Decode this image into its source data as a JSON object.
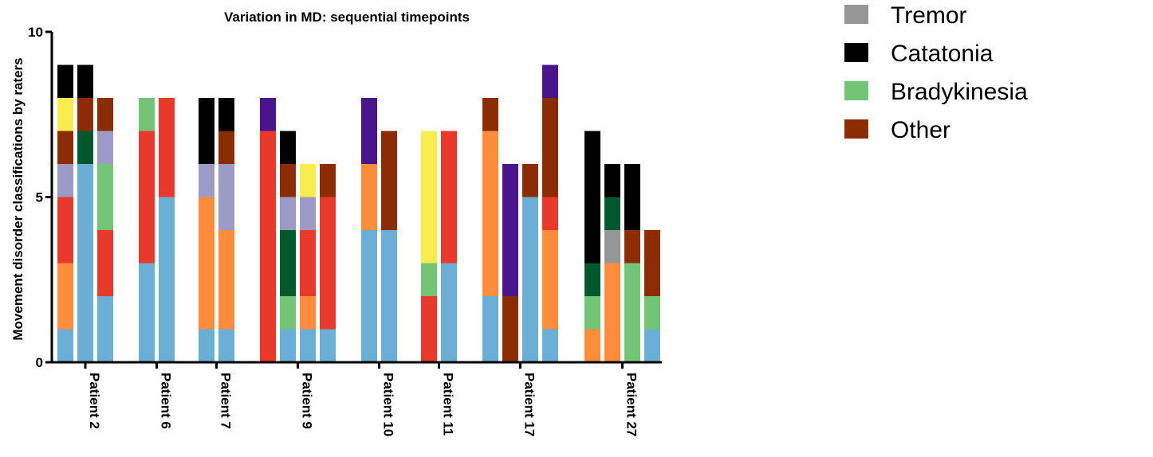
{
  "chart_data": {
    "type": "bar",
    "stacked": true,
    "title": "Variation in MD: sequential timepoints",
    "ylabel": "Movement disorder classifications by raters",
    "xlabel": "",
    "ylim": [
      0,
      10
    ],
    "yticks": [
      0,
      5,
      10
    ],
    "grid": false,
    "legend_placement": "right",
    "categories": [
      "Patient 2",
      "Patient 6",
      "Patient 7",
      "Patient 9",
      "Patient 10",
      "Patient 11",
      "Patient 17",
      "Patient 27"
    ],
    "colors": {
      "light_blue": "#6baed6",
      "orange": "#fd8d3c",
      "red": "#e8392c",
      "lavender": "#9e9ac8",
      "brown": "#8b2c05",
      "yellow": "#f9ec4f",
      "dark_green": "#00582e",
      "light_green": "#74c476",
      "black": "#000000",
      "purple": "#4a148c",
      "gray": "#969696"
    },
    "legend": [
      {
        "label": "Tremor",
        "color": "#969696"
      },
      {
        "label": "Catatonia",
        "color": "#000000"
      },
      {
        "label": "Bradykinesia",
        "color": "#74c476"
      },
      {
        "label": "Other",
        "color": "#8b2c05"
      }
    ],
    "bars": [
      {
        "category": "Patient 2",
        "segments": [
          {
            "c": "light_blue",
            "v": 1
          },
          {
            "c": "orange",
            "v": 2
          },
          {
            "c": "red",
            "v": 2
          },
          {
            "c": "lavender",
            "v": 1
          },
          {
            "c": "brown",
            "v": 1
          },
          {
            "c": "yellow",
            "v": 1
          },
          {
            "c": "black",
            "v": 1
          }
        ]
      },
      {
        "category": "Patient 2",
        "segments": [
          {
            "c": "light_blue",
            "v": 6
          },
          {
            "c": "dark_green",
            "v": 1
          },
          {
            "c": "brown",
            "v": 1
          },
          {
            "c": "black",
            "v": 1
          }
        ]
      },
      {
        "category": "Patient 2",
        "segments": [
          {
            "c": "light_blue",
            "v": 2
          },
          {
            "c": "red",
            "v": 2
          },
          {
            "c": "light_green",
            "v": 2
          },
          {
            "c": "lavender",
            "v": 1
          },
          {
            "c": "brown",
            "v": 1
          }
        ]
      },
      {
        "category": "Patient 6",
        "segments": [
          {
            "c": "light_blue",
            "v": 3
          },
          {
            "c": "red",
            "v": 4
          },
          {
            "c": "light_green",
            "v": 1
          }
        ]
      },
      {
        "category": "Patient 6",
        "segments": [
          {
            "c": "light_blue",
            "v": 5
          },
          {
            "c": "red",
            "v": 3
          }
        ]
      },
      {
        "category": "Patient 7",
        "segments": [
          {
            "c": "light_blue",
            "v": 1
          },
          {
            "c": "orange",
            "v": 4
          },
          {
            "c": "lavender",
            "v": 1
          },
          {
            "c": "black",
            "v": 2
          }
        ]
      },
      {
        "category": "Patient 7",
        "segments": [
          {
            "c": "light_blue",
            "v": 1
          },
          {
            "c": "orange",
            "v": 3
          },
          {
            "c": "lavender",
            "v": 2
          },
          {
            "c": "brown",
            "v": 1
          },
          {
            "c": "black",
            "v": 1
          }
        ]
      },
      {
        "category": "Patient 9",
        "segments": [
          {
            "c": "red",
            "v": 7
          },
          {
            "c": "purple",
            "v": 1
          }
        ]
      },
      {
        "category": "Patient 9",
        "segments": [
          {
            "c": "light_blue",
            "v": 1
          },
          {
            "c": "light_green",
            "v": 1
          },
          {
            "c": "dark_green",
            "v": 2
          },
          {
            "c": "lavender",
            "v": 1
          },
          {
            "c": "brown",
            "v": 1
          },
          {
            "c": "black",
            "v": 1
          }
        ]
      },
      {
        "category": "Patient 9",
        "segments": [
          {
            "c": "light_blue",
            "v": 1
          },
          {
            "c": "orange",
            "v": 1
          },
          {
            "c": "red",
            "v": 2
          },
          {
            "c": "lavender",
            "v": 1
          },
          {
            "c": "yellow",
            "v": 1
          }
        ]
      },
      {
        "category": "Patient 9",
        "segments": [
          {
            "c": "light_blue",
            "v": 1
          },
          {
            "c": "red",
            "v": 4
          },
          {
            "c": "brown",
            "v": 1
          }
        ]
      },
      {
        "category": "Patient 10",
        "segments": [
          {
            "c": "light_blue",
            "v": 4
          },
          {
            "c": "orange",
            "v": 2
          },
          {
            "c": "purple",
            "v": 2
          }
        ]
      },
      {
        "category": "Patient 10",
        "segments": [
          {
            "c": "light_blue",
            "v": 4
          },
          {
            "c": "brown",
            "v": 3
          }
        ]
      },
      {
        "category": "Patient 11",
        "segments": [
          {
            "c": "red",
            "v": 2
          },
          {
            "c": "light_green",
            "v": 1
          },
          {
            "c": "yellow",
            "v": 4
          }
        ]
      },
      {
        "category": "Patient 11",
        "segments": [
          {
            "c": "light_blue",
            "v": 3
          },
          {
            "c": "red",
            "v": 4
          }
        ]
      },
      {
        "category": "Patient 17",
        "segments": [
          {
            "c": "light_blue",
            "v": 2
          },
          {
            "c": "orange",
            "v": 5
          },
          {
            "c": "brown",
            "v": 1
          }
        ]
      },
      {
        "category": "Patient 17",
        "segments": [
          {
            "c": "brown",
            "v": 2
          },
          {
            "c": "purple",
            "v": 4
          }
        ]
      },
      {
        "category": "Patient 17",
        "segments": [
          {
            "c": "light_blue",
            "v": 5
          },
          {
            "c": "brown",
            "v": 1
          }
        ]
      },
      {
        "category": "Patient 17",
        "segments": [
          {
            "c": "light_blue",
            "v": 1
          },
          {
            "c": "orange",
            "v": 3
          },
          {
            "c": "red",
            "v": 1
          },
          {
            "c": "brown",
            "v": 3
          },
          {
            "c": "purple",
            "v": 1
          }
        ]
      },
      {
        "category": "Patient 27",
        "segments": [
          {
            "c": "orange",
            "v": 1
          },
          {
            "c": "light_green",
            "v": 1
          },
          {
            "c": "dark_green",
            "v": 1
          },
          {
            "c": "black",
            "v": 4
          }
        ]
      },
      {
        "category": "Patient 27",
        "segments": [
          {
            "c": "orange",
            "v": 3
          },
          {
            "c": "gray",
            "v": 1
          },
          {
            "c": "dark_green",
            "v": 1
          },
          {
            "c": "black",
            "v": 1
          }
        ]
      },
      {
        "category": "Patient 27",
        "segments": [
          {
            "c": "light_green",
            "v": 3
          },
          {
            "c": "brown",
            "v": 1
          },
          {
            "c": "black",
            "v": 2
          }
        ]
      },
      {
        "category": "Patient 27",
        "segments": [
          {
            "c": "light_blue",
            "v": 1
          },
          {
            "c": "light_green",
            "v": 1
          },
          {
            "c": "brown",
            "v": 2
          }
        ]
      }
    ]
  }
}
